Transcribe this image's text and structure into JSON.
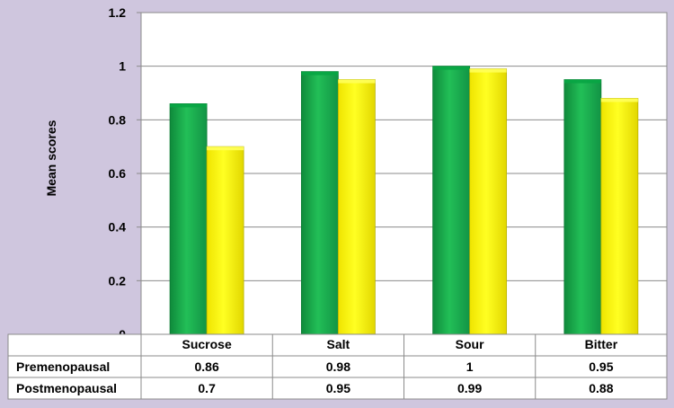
{
  "chart_data": {
    "type": "bar",
    "title": "",
    "xlabel": "",
    "ylabel": "Mean scores",
    "ylim": [
      0,
      1.2
    ],
    "yticks": [
      0,
      0.2,
      0.4,
      0.6,
      0.8,
      1,
      1.2
    ],
    "ytick_labels": [
      "0",
      "0.2",
      "0.4",
      "0.6",
      "0.8",
      "1",
      "1.2"
    ],
    "grid": true,
    "legend": "data-table-below",
    "categories": [
      "Sucrose",
      "Salt",
      "Sour",
      "Bitter"
    ],
    "series": [
      {
        "name": "Premenopausal",
        "values": [
          0.86,
          0.98,
          1,
          0.95
        ],
        "labels": [
          "0.86",
          "0.98",
          "1",
          "0.95"
        ],
        "color": "#1fb14f"
      },
      {
        "name": "Postmenopausal",
        "values": [
          0.7,
          0.95,
          0.99,
          0.88
        ],
        "labels": [
          "0.7",
          "0.95",
          "0.99",
          "0.88"
        ],
        "color": "#ffff00"
      }
    ]
  }
}
